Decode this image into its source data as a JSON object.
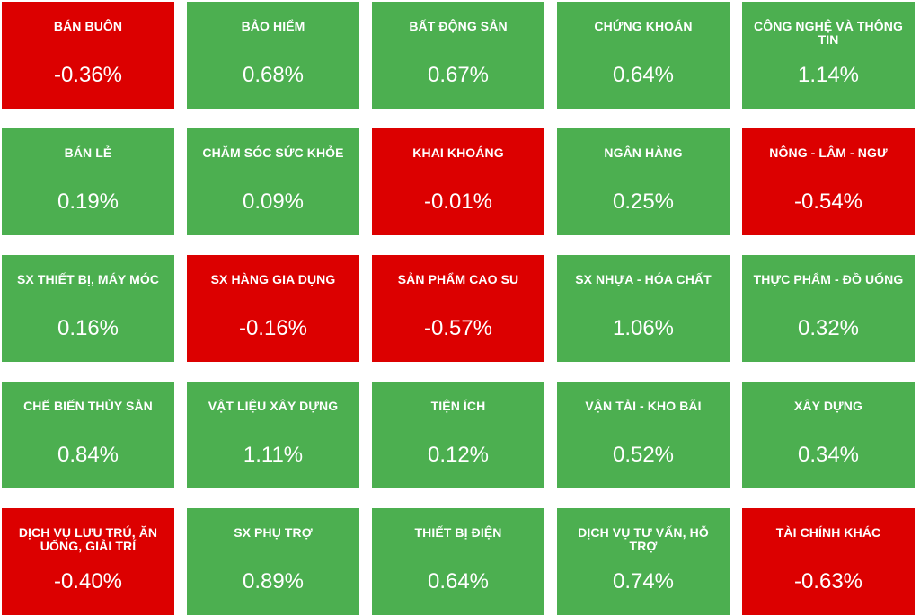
{
  "sectors": [
    {
      "name": "BÁN BUÔN",
      "value": "-0.36%",
      "trend": "down"
    },
    {
      "name": "BẢO HIỂM",
      "value": "0.68%",
      "trend": "up"
    },
    {
      "name": "BẤT ĐỘNG SẢN",
      "value": "0.67%",
      "trend": "up"
    },
    {
      "name": "CHỨNG KHOÁN",
      "value": "0.64%",
      "trend": "up"
    },
    {
      "name": "CÔNG NGHỆ VÀ THÔNG TIN",
      "value": "1.14%",
      "trend": "up"
    },
    {
      "name": "BÁN LẺ",
      "value": "0.19%",
      "trend": "up"
    },
    {
      "name": "CHĂM SÓC SỨC KHỎE",
      "value": "0.09%",
      "trend": "up"
    },
    {
      "name": "KHAI KHOÁNG",
      "value": "-0.01%",
      "trend": "down"
    },
    {
      "name": "NGÂN HÀNG",
      "value": "0.25%",
      "trend": "up"
    },
    {
      "name": "NÔNG - LÂM - NGƯ",
      "value": "-0.54%",
      "trend": "down"
    },
    {
      "name": "SX THIẾT BỊ, MÁY MÓC",
      "value": "0.16%",
      "trend": "up"
    },
    {
      "name": "SX HÀNG GIA DỤNG",
      "value": "-0.16%",
      "trend": "down"
    },
    {
      "name": "SẢN PHẨM CAO SU",
      "value": "-0.57%",
      "trend": "down"
    },
    {
      "name": "SX NHỰA - HÓA CHẤT",
      "value": "1.06%",
      "trend": "up"
    },
    {
      "name": "THỰC PHẨM - ĐỒ UỐNG",
      "value": "0.32%",
      "trend": "up"
    },
    {
      "name": "CHẾ BIẾN THỦY SẢN",
      "value": "0.84%",
      "trend": "up"
    },
    {
      "name": "VẬT LIỆU XÂY DỰNG",
      "value": "1.11%",
      "trend": "up"
    },
    {
      "name": "TIỆN ÍCH",
      "value": "0.12%",
      "trend": "up"
    },
    {
      "name": "VẬN TẢI - KHO BÃI",
      "value": "0.52%",
      "trend": "up"
    },
    {
      "name": "XÂY DỰNG",
      "value": "0.34%",
      "trend": "up"
    },
    {
      "name": "DỊCH VỤ LƯU TRÚ, ĂN UỐNG, GIẢI TRÍ",
      "value": "-0.40%",
      "trend": "down"
    },
    {
      "name": "SX PHỤ TRỢ",
      "value": "0.89%",
      "trend": "up"
    },
    {
      "name": "THIẾT BỊ ĐIỆN",
      "value": "0.64%",
      "trend": "up"
    },
    {
      "name": "DỊCH VỤ TƯ VẤN, HỖ TRỢ",
      "value": "0.74%",
      "trend": "up"
    },
    {
      "name": "TÀI CHÍNH KHÁC",
      "value": "-0.63%",
      "trend": "down"
    }
  ],
  "colors": {
    "up": "#4caf50",
    "down": "#dc0000",
    "text": "#ffffff"
  }
}
